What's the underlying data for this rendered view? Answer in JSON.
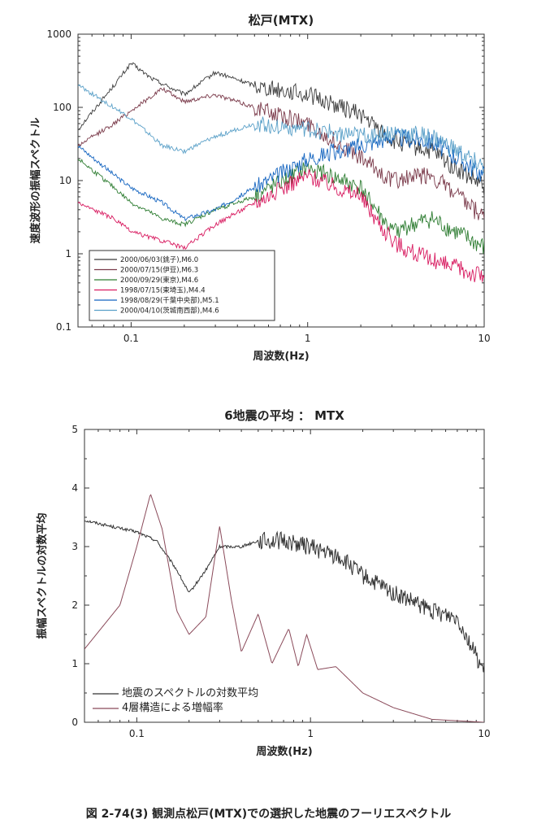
{
  "caption": "図 2-74(3) 観測点松戸(MTX)での選択した地震のフーリエスペクトル",
  "chart_data": [
    {
      "type": "line",
      "title": "松戸(MTX)",
      "xlabel": "周波数(Hz)",
      "ylabel": "速度波形の振幅スペクトル",
      "xscale": "log",
      "yscale": "log",
      "xlim": [
        0.05,
        10
      ],
      "ylim": [
        0.1,
        1000
      ],
      "xticks": [
        "0.1",
        "1",
        "10"
      ],
      "yticks": [
        "0.1",
        "1",
        "10",
        "100",
        "1000"
      ],
      "legend": "bottom-left",
      "series": [
        {
          "name": "2000/06/03(銚子),M6.0",
          "color": "#3a3a3a",
          "x": [
            0.05,
            0.08,
            0.1,
            0.13,
            0.2,
            0.3,
            0.5,
            1.0,
            2.0,
            3.0,
            5.0,
            10.0
          ],
          "y": [
            50,
            200,
            400,
            250,
            150,
            300,
            200,
            150,
            80,
            35,
            25,
            8
          ]
        },
        {
          "name": "2000/07/15(伊豆),M6.3",
          "color": "#7a3a4a",
          "x": [
            0.05,
            0.08,
            0.1,
            0.15,
            0.2,
            0.3,
            0.5,
            1.0,
            2.0,
            3.0,
            5.0,
            10.0
          ],
          "y": [
            30,
            60,
            90,
            180,
            120,
            150,
            100,
            60,
            20,
            10,
            12,
            3
          ]
        },
        {
          "name": "2000/09/29(東京),M4.6",
          "color": "#2e7d32",
          "x": [
            0.05,
            0.08,
            0.1,
            0.15,
            0.2,
            0.3,
            0.5,
            1.0,
            2.0,
            3.0,
            5.0,
            10.0
          ],
          "y": [
            20,
            8,
            5,
            3,
            2.5,
            4,
            6,
            15,
            8,
            2,
            3,
            1.2
          ]
        },
        {
          "name": "1998/07/15(東埼玉),M4.4",
          "color": "#d81b60",
          "x": [
            0.05,
            0.08,
            0.1,
            0.15,
            0.2,
            0.3,
            0.5,
            1.0,
            2.0,
            3.0,
            5.0,
            10.0
          ],
          "y": [
            5,
            3,
            2,
            1.5,
            1.2,
            2.5,
            5,
            12,
            6,
            1.5,
            0.8,
            0.5
          ]
        },
        {
          "name": "1998/08/29(千葉中央部),M5.1",
          "color": "#1565c0",
          "x": [
            0.05,
            0.08,
            0.1,
            0.15,
            0.2,
            0.3,
            0.5,
            1.0,
            2.0,
            3.0,
            5.0,
            10.0
          ],
          "y": [
            30,
            12,
            8,
            5,
            3,
            4,
            8,
            20,
            30,
            40,
            35,
            12
          ]
        },
        {
          "name": "2000/04/10(茨城南西部),M4.6",
          "color": "#5aa0c8",
          "x": [
            0.05,
            0.08,
            0.1,
            0.15,
            0.2,
            0.3,
            0.5,
            1.0,
            2.0,
            3.0,
            5.0,
            10.0
          ],
          "y": [
            200,
            100,
            70,
            30,
            25,
            40,
            60,
            50,
            40,
            45,
            40,
            15
          ]
        }
      ]
    },
    {
      "type": "line",
      "title": "6地震の平均 ： MTX",
      "xlabel": "周波数(Hz)",
      "ylabel": "振幅スペクトルの対数平均",
      "xscale": "log",
      "xlim": [
        0.05,
        10
      ],
      "ylim": [
        0,
        5
      ],
      "xticks": [
        "0.1",
        "1",
        "10"
      ],
      "yticks": [
        "0",
        "1",
        "2",
        "3",
        "4",
        "5"
      ],
      "legend": "bottom-left",
      "series": [
        {
          "name": "地震のスペクトルの対数平均",
          "color": "#333333",
          "x": [
            0.05,
            0.07,
            0.1,
            0.13,
            0.17,
            0.2,
            0.25,
            0.3,
            0.4,
            0.5,
            0.7,
            1.0,
            1.5,
            2.0,
            3.0,
            5.0,
            7.0,
            10.0
          ],
          "y": [
            3.45,
            3.35,
            3.25,
            3.1,
            2.6,
            2.2,
            2.6,
            3.0,
            3.0,
            3.1,
            3.1,
            3.0,
            2.8,
            2.5,
            2.2,
            1.9,
            1.8,
            0.85
          ]
        },
        {
          "name": "4層構造による増幅率",
          "color": "#8a4a5a",
          "x": [
            0.05,
            0.08,
            0.1,
            0.12,
            0.14,
            0.17,
            0.2,
            0.25,
            0.3,
            0.35,
            0.4,
            0.5,
            0.6,
            0.75,
            0.85,
            0.95,
            1.1,
            1.4,
            2.0,
            3.0,
            5.0,
            10.0
          ],
          "y": [
            1.25,
            2.0,
            3.0,
            3.9,
            3.3,
            1.9,
            1.5,
            1.8,
            3.35,
            2.1,
            1.2,
            1.85,
            1.0,
            1.6,
            0.95,
            1.5,
            0.9,
            0.95,
            0.5,
            0.25,
            0.05,
            0.0
          ]
        }
      ]
    }
  ]
}
